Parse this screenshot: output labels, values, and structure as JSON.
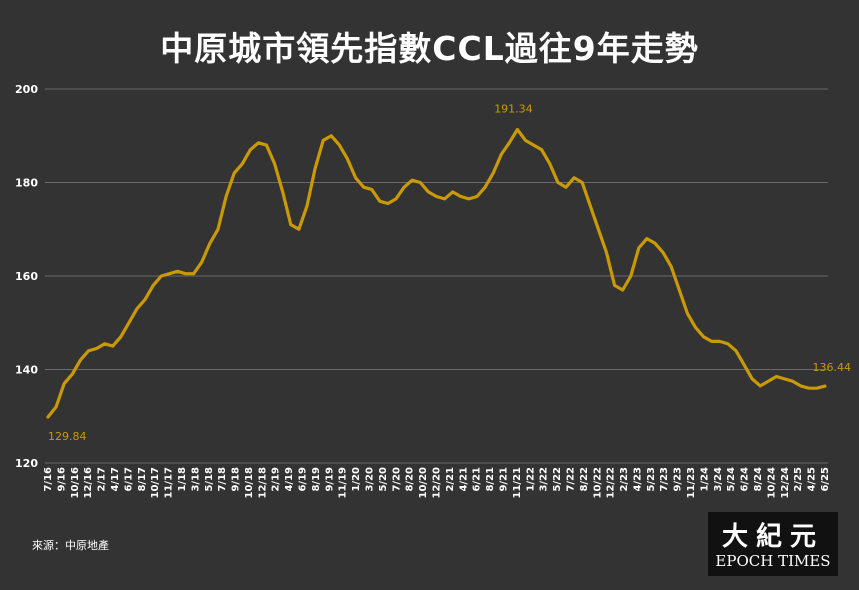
{
  "chart_data": {
    "type": "line",
    "title": "中原城市領先指數CCL過往9年走勢",
    "xlabel": "",
    "ylabel": "",
    "ylim": [
      120,
      200
    ],
    "yticks": [
      120,
      140,
      160,
      180,
      200
    ],
    "grid": true,
    "x_tick_labels": [
      "7/16",
      "9/16",
      "10/16",
      "12/16",
      "2/17",
      "4/17",
      "6/17",
      "8/17",
      "10/17",
      "11/17",
      "1/18",
      "3/18",
      "5/18",
      "7/18",
      "9/18",
      "10/18",
      "12/18",
      "2/19",
      "4/19",
      "6/19",
      "8/19",
      "9/19",
      "11/19",
      "1/20",
      "3/20",
      "5/20",
      "7/20",
      "8/20",
      "10/20",
      "12/20",
      "2/21",
      "4/21",
      "6/21",
      "8/21",
      "9/21",
      "11/21",
      "1/22",
      "3/22",
      "5/22",
      "7/22",
      "8/22",
      "10/22",
      "12/22",
      "2/23",
      "4/23",
      "5/23",
      "7/23",
      "9/23",
      "11/23",
      "1/24",
      "3/24",
      "5/24",
      "6/24",
      "8/24",
      "10/24",
      "12/24",
      "2/25",
      "4/25",
      "6/25"
    ],
    "series": [
      {
        "color": "#c99a06",
        "values": [
          129.84,
          132,
          137,
          139,
          142,
          144,
          144.5,
          145.5,
          145,
          147,
          150,
          153,
          155,
          158,
          160,
          160.5,
          161,
          160.5,
          160.5,
          163,
          167,
          170,
          177,
          182,
          184,
          187,
          188.5,
          188,
          184,
          178,
          171,
          170,
          175,
          183,
          189,
          190,
          188,
          185,
          181,
          179,
          178.5,
          176,
          175.5,
          176.5,
          179,
          180.5,
          180,
          178,
          177,
          176.5,
          178,
          177,
          176.5,
          177,
          179,
          182,
          186,
          188.5,
          191.34,
          189,
          188,
          187,
          184,
          180,
          179,
          181,
          180,
          175,
          170,
          165,
          158,
          157,
          160,
          166,
          168,
          167,
          165,
          162,
          157,
          152,
          149,
          147,
          146,
          146,
          145.5,
          144,
          141,
          138,
          136.5,
          137.5,
          138.5,
          138,
          137.5,
          136.5,
          136,
          136,
          136.44
        ],
        "start_label": "129.84",
        "peak_label": "191.34",
        "end_label": "136.44"
      }
    ]
  },
  "source": "來源：中原地產",
  "logo": {
    "cn": "大紀元",
    "en": "EPOCH TIMES"
  },
  "colors": {
    "background": "#333333",
    "line": "#c99a06",
    "grid": "#6a6a6a",
    "text": "#ffffff"
  }
}
